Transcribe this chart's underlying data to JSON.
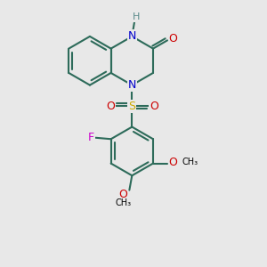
{
  "bg_color": "#e8e8e8",
  "bond_color": "#2d6b5a",
  "bond_width": 1.5,
  "atom_colors": {
    "N": "#0000cc",
    "O": "#cc0000",
    "S": "#ccaa00",
    "F": "#cc00cc",
    "C": "#000000",
    "H": "#5a8a8a"
  },
  "font_size": 9,
  "fig_size": [
    3.0,
    3.0
  ],
  "dpi": 100
}
